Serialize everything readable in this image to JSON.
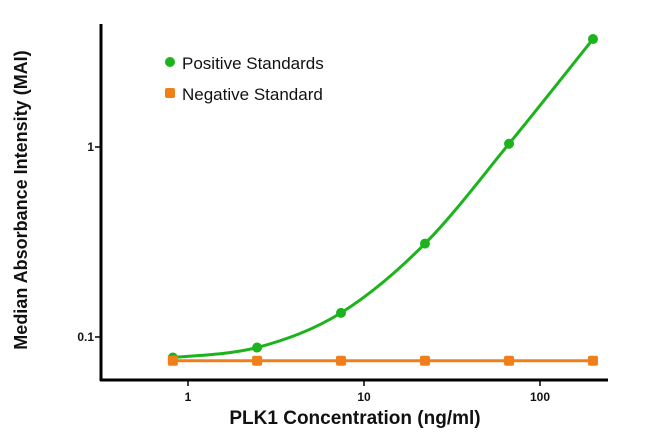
{
  "chart_data": {
    "type": "line",
    "title": "",
    "xlabel": "PLK1 Concentration (ng/ml)",
    "ylabel": "Median Absorbance Intensity (MAI)",
    "xscale": "log",
    "yscale": "log",
    "xlim": [
      0.6,
      250
    ],
    "ylim": [
      0.055,
      5
    ],
    "xticks": [
      {
        "value": 1,
        "label": "1"
      },
      {
        "value": 10,
        "label": "10"
      },
      {
        "value": 100,
        "label": "100"
      }
    ],
    "yticks": [
      {
        "value": 0.1,
        "label": "0.1"
      },
      {
        "value": 1,
        "label": "1"
      }
    ],
    "grid": false,
    "legend_position": "top-left",
    "series": [
      {
        "name": "Positive Standards",
        "color": "#1db31d",
        "marker": "circle",
        "smooth": true,
        "x": [
          0.82,
          2.47,
          7.4,
          22.2,
          66.7,
          200
        ],
        "y": [
          0.078,
          0.088,
          0.134,
          0.31,
          1.04,
          3.7
        ]
      },
      {
        "name": "Negative Standard",
        "color": "#f07f1a",
        "marker": "square",
        "smooth": false,
        "x": [
          0.82,
          2.47,
          7.4,
          22.2,
          66.7,
          200
        ],
        "y": [
          0.075,
          0.075,
          0.075,
          0.075,
          0.075,
          0.075
        ]
      }
    ]
  }
}
